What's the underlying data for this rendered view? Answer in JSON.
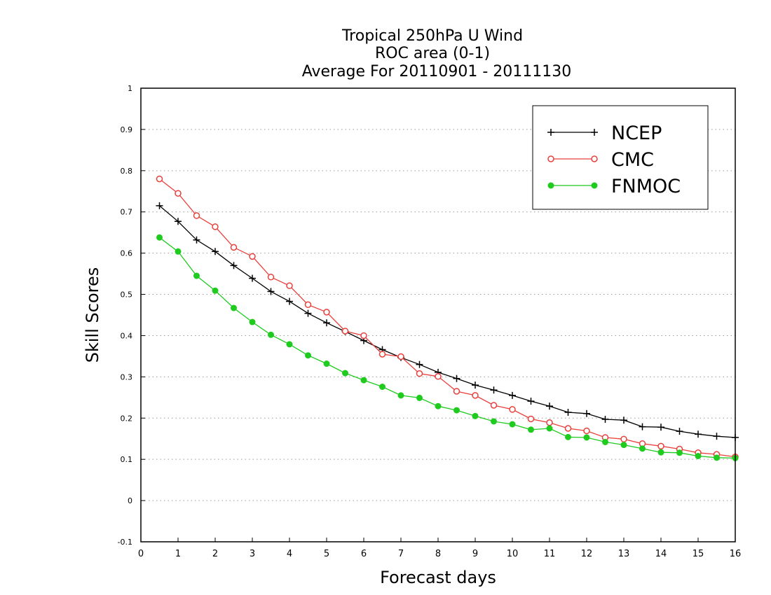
{
  "chart_data": {
    "type": "line",
    "title_lines": [
      "Tropical 250hPa U Wind",
      "ROC area (0-1)",
      "Average For 20110901 - 20111130"
    ],
    "xlabel": "Forecast days",
    "ylabel": "Skill Scores",
    "xlim": [
      0,
      16
    ],
    "ylim": [
      -0.1,
      1
    ],
    "x_ticks": [
      0,
      1,
      2,
      3,
      4,
      5,
      6,
      7,
      8,
      9,
      10,
      11,
      12,
      13,
      14,
      15,
      16
    ],
    "y_ticks": [
      -0.1,
      0,
      0.1,
      0.2,
      0.3,
      0.4,
      0.5,
      0.6,
      0.7,
      0.8,
      0.9,
      1
    ],
    "y_tick_labels": [
      "-0.1",
      "0",
      "0.1",
      "0.2",
      "0.3",
      "0.4",
      "0.5",
      "0.6",
      "0.7",
      "0.8",
      "0.9",
      "1"
    ],
    "grid": "horizontal dotted",
    "legend_position": "top-right",
    "x": [
      0.5,
      1,
      1.5,
      2,
      2.5,
      3,
      3.5,
      4,
      4.5,
      5,
      5.5,
      6,
      6.5,
      7,
      7.5,
      8,
      8.5,
      9,
      9.5,
      10,
      10.5,
      11,
      11.5,
      12,
      12.5,
      13,
      13.5,
      14,
      14.5,
      15,
      15.5,
      16
    ],
    "series": [
      {
        "name": "NCEP",
        "color": "#000000",
        "marker": "plus",
        "values": [
          0.715,
          0.677,
          0.632,
          0.604,
          0.57,
          0.539,
          0.507,
          0.483,
          0.454,
          0.431,
          0.41,
          0.388,
          0.366,
          0.347,
          0.33,
          0.311,
          0.296,
          0.28,
          0.268,
          0.255,
          0.241,
          0.229,
          0.214,
          0.211,
          0.197,
          0.195,
          0.179,
          0.178,
          0.168,
          0.161,
          0.156,
          0.153
        ]
      },
      {
        "name": "CMC",
        "color": "#e8403c",
        "marker": "open-circle",
        "values": [
          0.78,
          0.745,
          0.691,
          0.664,
          0.614,
          0.592,
          0.542,
          0.521,
          0.475,
          0.457,
          0.411,
          0.4,
          0.355,
          0.349,
          0.308,
          0.301,
          0.265,
          0.255,
          0.231,
          0.221,
          0.198,
          0.189,
          0.175,
          0.169,
          0.153,
          0.149,
          0.138,
          0.132,
          0.125,
          0.116,
          0.112,
          0.106
        ]
      },
      {
        "name": "FNMOC",
        "color": "#1ecb1e",
        "marker": "filled-circle",
        "values": [
          0.638,
          0.604,
          0.545,
          0.509,
          0.467,
          0.433,
          0.402,
          0.379,
          0.352,
          0.332,
          0.309,
          0.292,
          0.276,
          0.255,
          0.249,
          0.229,
          0.219,
          0.205,
          0.192,
          0.185,
          0.172,
          0.175,
          0.154,
          0.153,
          0.142,
          0.135,
          0.126,
          0.117,
          0.116,
          0.108,
          0.104,
          0.103
        ]
      }
    ]
  }
}
